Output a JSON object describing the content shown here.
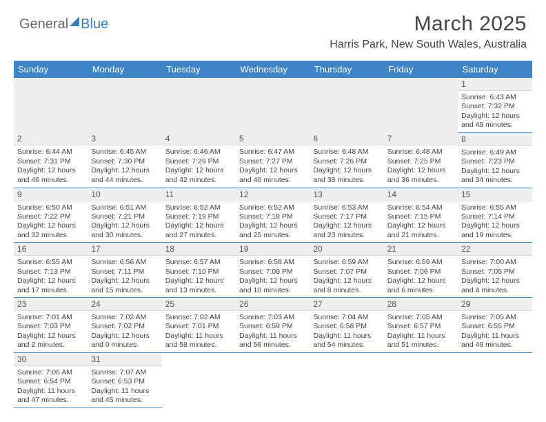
{
  "brand": {
    "part1": "General",
    "part2": "Blue"
  },
  "title": "March 2025",
  "location": "Harris Park, New South Wales, Australia",
  "style": {
    "header_bg": "#3d84c6",
    "header_fg": "#ffffff",
    "daynum_bg": "#eceeef",
    "border_color": "#3d84c6",
    "text_color": "#444444",
    "title_fontsize": 30,
    "location_fontsize": 16,
    "day_fontsize": 10.5
  },
  "weekdays": [
    "Sunday",
    "Monday",
    "Tuesday",
    "Wednesday",
    "Thursday",
    "Friday",
    "Saturday"
  ],
  "leading_blanks": 6,
  "days": [
    {
      "n": 1,
      "sunrise": "6:43 AM",
      "sunset": "7:32 PM",
      "daylight": "12 hours and 49 minutes."
    },
    {
      "n": 2,
      "sunrise": "6:44 AM",
      "sunset": "7:31 PM",
      "daylight": "12 hours and 46 minutes."
    },
    {
      "n": 3,
      "sunrise": "6:45 AM",
      "sunset": "7:30 PM",
      "daylight": "12 hours and 44 minutes."
    },
    {
      "n": 4,
      "sunrise": "6:46 AM",
      "sunset": "7:29 PM",
      "daylight": "12 hours and 42 minutes."
    },
    {
      "n": 5,
      "sunrise": "6:47 AM",
      "sunset": "7:27 PM",
      "daylight": "12 hours and 40 minutes."
    },
    {
      "n": 6,
      "sunrise": "6:48 AM",
      "sunset": "7:26 PM",
      "daylight": "12 hours and 38 minutes."
    },
    {
      "n": 7,
      "sunrise": "6:48 AM",
      "sunset": "7:25 PM",
      "daylight": "12 hours and 36 minutes."
    },
    {
      "n": 8,
      "sunrise": "6:49 AM",
      "sunset": "7:23 PM",
      "daylight": "12 hours and 34 minutes."
    },
    {
      "n": 9,
      "sunrise": "6:50 AM",
      "sunset": "7:22 PM",
      "daylight": "12 hours and 32 minutes."
    },
    {
      "n": 10,
      "sunrise": "6:51 AM",
      "sunset": "7:21 PM",
      "daylight": "12 hours and 30 minutes."
    },
    {
      "n": 11,
      "sunrise": "6:52 AM",
      "sunset": "7:19 PM",
      "daylight": "12 hours and 27 minutes."
    },
    {
      "n": 12,
      "sunrise": "6:52 AM",
      "sunset": "7:18 PM",
      "daylight": "12 hours and 25 minutes."
    },
    {
      "n": 13,
      "sunrise": "6:53 AM",
      "sunset": "7:17 PM",
      "daylight": "12 hours and 23 minutes."
    },
    {
      "n": 14,
      "sunrise": "6:54 AM",
      "sunset": "7:15 PM",
      "daylight": "12 hours and 21 minutes."
    },
    {
      "n": 15,
      "sunrise": "6:55 AM",
      "sunset": "7:14 PM",
      "daylight": "12 hours and 19 minutes."
    },
    {
      "n": 16,
      "sunrise": "6:55 AM",
      "sunset": "7:13 PM",
      "daylight": "12 hours and 17 minutes."
    },
    {
      "n": 17,
      "sunrise": "6:56 AM",
      "sunset": "7:11 PM",
      "daylight": "12 hours and 15 minutes."
    },
    {
      "n": 18,
      "sunrise": "6:57 AM",
      "sunset": "7:10 PM",
      "daylight": "12 hours and 13 minutes."
    },
    {
      "n": 19,
      "sunrise": "6:58 AM",
      "sunset": "7:09 PM",
      "daylight": "12 hours and 10 minutes."
    },
    {
      "n": 20,
      "sunrise": "6:59 AM",
      "sunset": "7:07 PM",
      "daylight": "12 hours and 8 minutes."
    },
    {
      "n": 21,
      "sunrise": "6:59 AM",
      "sunset": "7:06 PM",
      "daylight": "12 hours and 6 minutes."
    },
    {
      "n": 22,
      "sunrise": "7:00 AM",
      "sunset": "7:05 PM",
      "daylight": "12 hours and 4 minutes."
    },
    {
      "n": 23,
      "sunrise": "7:01 AM",
      "sunset": "7:03 PM",
      "daylight": "12 hours and 2 minutes."
    },
    {
      "n": 24,
      "sunrise": "7:02 AM",
      "sunset": "7:02 PM",
      "daylight": "12 hours and 0 minutes."
    },
    {
      "n": 25,
      "sunrise": "7:02 AM",
      "sunset": "7:01 PM",
      "daylight": "11 hours and 58 minutes."
    },
    {
      "n": 26,
      "sunrise": "7:03 AM",
      "sunset": "6:59 PM",
      "daylight": "11 hours and 56 minutes."
    },
    {
      "n": 27,
      "sunrise": "7:04 AM",
      "sunset": "6:58 PM",
      "daylight": "11 hours and 54 minutes."
    },
    {
      "n": 28,
      "sunrise": "7:05 AM",
      "sunset": "6:57 PM",
      "daylight": "11 hours and 51 minutes."
    },
    {
      "n": 29,
      "sunrise": "7:05 AM",
      "sunset": "6:55 PM",
      "daylight": "11 hours and 49 minutes."
    },
    {
      "n": 30,
      "sunrise": "7:06 AM",
      "sunset": "6:54 PM",
      "daylight": "11 hours and 47 minutes."
    },
    {
      "n": 31,
      "sunrise": "7:07 AM",
      "sunset": "6:53 PM",
      "daylight": "11 hours and 45 minutes."
    }
  ],
  "labels": {
    "sunrise": "Sunrise:",
    "sunset": "Sunset:",
    "daylight": "Daylight:"
  }
}
